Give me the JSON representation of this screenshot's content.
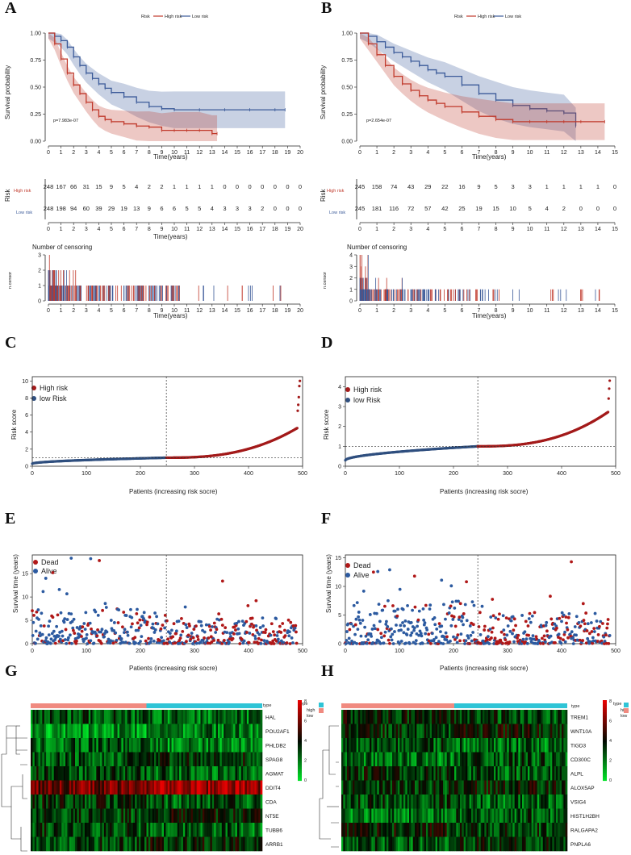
{
  "panels": {
    "A": {
      "label": "A",
      "km": {
        "legend_title": "Risk",
        "legend_high": "High risk",
        "legend_low": "Low risk",
        "ylabel": "Survival probability",
        "xlabel": "Time(years)",
        "pvalue": "p=7.983e-07",
        "yticks": [
          "0.00",
          "0.25",
          "0.50",
          "0.75",
          "1.00"
        ],
        "xmax": 20,
        "high_color": "#c0392b",
        "low_color": "#3b5a99",
        "high_curve": [
          [
            0,
            1.0
          ],
          [
            0.5,
            0.9
          ],
          [
            1,
            0.76
          ],
          [
            1.5,
            0.63
          ],
          [
            2,
            0.52
          ],
          [
            2.5,
            0.44
          ],
          [
            3,
            0.36
          ],
          [
            3.5,
            0.29
          ],
          [
            4,
            0.23
          ],
          [
            4.5,
            0.2
          ],
          [
            5,
            0.18
          ],
          [
            6,
            0.16
          ],
          [
            7,
            0.14
          ],
          [
            8,
            0.13
          ],
          [
            9,
            0.1
          ],
          [
            10,
            0.1
          ],
          [
            11,
            0.1
          ],
          [
            12,
            0.1
          ],
          [
            13,
            0.07
          ],
          [
            13.4,
            0.07
          ]
        ],
        "low_curve": [
          [
            0,
            1.0
          ],
          [
            0.5,
            0.97
          ],
          [
            1,
            0.93
          ],
          [
            1.5,
            0.87
          ],
          [
            2,
            0.78
          ],
          [
            2.5,
            0.7
          ],
          [
            3,
            0.63
          ],
          [
            3.5,
            0.58
          ],
          [
            4,
            0.53
          ],
          [
            4.5,
            0.49
          ],
          [
            5,
            0.45
          ],
          [
            6,
            0.41
          ],
          [
            7,
            0.36
          ],
          [
            8,
            0.32
          ],
          [
            9,
            0.3
          ],
          [
            10,
            0.29
          ],
          [
            12,
            0.29
          ],
          [
            14,
            0.29
          ],
          [
            16,
            0.29
          ],
          [
            18,
            0.29
          ],
          [
            18.8,
            0.29
          ]
        ]
      },
      "risk_table": {
        "ylabel": "Risk",
        "xlabel": "Time(years)",
        "row_high": "High risk",
        "row_low": "Low risk",
        "high": [
          "248",
          "167",
          "66",
          "31",
          "15",
          "9",
          "5",
          "4",
          "2",
          "2",
          "1",
          "1",
          "1",
          "1",
          "0",
          "0",
          "0",
          "0",
          "0",
          "0",
          "0"
        ],
        "low": [
          "248",
          "198",
          "94",
          "60",
          "39",
          "29",
          "19",
          "13",
          "9",
          "6",
          "6",
          "5",
          "5",
          "4",
          "3",
          "3",
          "3",
          "2",
          "0",
          "0",
          "0"
        ]
      },
      "censor": {
        "title": "Number of censoring",
        "ylabel": "n.censor",
        "xlabel": "Time(years)",
        "yticks": [
          "0",
          "1",
          "2",
          "3"
        ]
      }
    },
    "B": {
      "label": "B",
      "km": {
        "legend_title": "Risk",
        "legend_high": "High risk",
        "legend_low": "Low risk",
        "ylabel": "Survival probability",
        "xlabel": "Time(years)",
        "pvalue": "p=2.654e-07",
        "yticks": [
          "0.00",
          "0.25",
          "0.50",
          "0.75",
          "1.00"
        ],
        "xmax": 15,
        "high_color": "#c0392b",
        "low_color": "#3b5a99",
        "high_curve": [
          [
            0,
            1.0
          ],
          [
            0.5,
            0.9
          ],
          [
            1,
            0.8
          ],
          [
            1.5,
            0.7
          ],
          [
            2,
            0.6
          ],
          [
            2.5,
            0.53
          ],
          [
            3,
            0.47
          ],
          [
            3.5,
            0.42
          ],
          [
            4,
            0.38
          ],
          [
            4.5,
            0.35
          ],
          [
            5,
            0.32
          ],
          [
            6,
            0.27
          ],
          [
            7,
            0.23
          ],
          [
            8,
            0.2
          ],
          [
            9,
            0.18
          ],
          [
            10,
            0.18
          ],
          [
            11,
            0.18
          ],
          [
            12,
            0.18
          ],
          [
            13,
            0.18
          ],
          [
            14.4,
            0.18
          ]
        ],
        "low_curve": [
          [
            0,
            1.0
          ],
          [
            0.5,
            0.97
          ],
          [
            1,
            0.92
          ],
          [
            1.5,
            0.87
          ],
          [
            2,
            0.82
          ],
          [
            2.5,
            0.78
          ],
          [
            3,
            0.74
          ],
          [
            3.5,
            0.7
          ],
          [
            4,
            0.66
          ],
          [
            4.5,
            0.63
          ],
          [
            5,
            0.6
          ],
          [
            6,
            0.52
          ],
          [
            7,
            0.44
          ],
          [
            8,
            0.38
          ],
          [
            9,
            0.33
          ],
          [
            10,
            0.3
          ],
          [
            11,
            0.28
          ],
          [
            12,
            0.26
          ],
          [
            12.7,
            0.14
          ]
        ]
      },
      "risk_table": {
        "ylabel": "Risk",
        "xlabel": "Time(years)",
        "row_high": "High risk",
        "row_low": "Low risk",
        "high": [
          "245",
          "158",
          "74",
          "43",
          "29",
          "22",
          "16",
          "9",
          "5",
          "3",
          "3",
          "1",
          "1",
          "1",
          "1",
          "0"
        ],
        "low": [
          "245",
          "181",
          "116",
          "72",
          "57",
          "42",
          "25",
          "19",
          "15",
          "10",
          "5",
          "4",
          "2",
          "0",
          "0",
          "0"
        ]
      },
      "censor": {
        "title": "Number of censoring",
        "ylabel": "n.censor",
        "xlabel": "Time(years)",
        "yticks": [
          "0",
          "1",
          "2",
          "3",
          "4"
        ]
      }
    },
    "C": {
      "label": "C",
      "ylabel": "Risk score",
      "xlabel": "Patients (increasing risk socre)",
      "legend_high": "High risk",
      "legend_low": "low Risk",
      "yticks": [
        "0",
        "2",
        "4",
        "6",
        "8",
        "10"
      ],
      "xticks": [
        "0",
        "100",
        "200",
        "300",
        "400",
        "500"
      ],
      "ymax": 10.5
    },
    "D": {
      "label": "D",
      "ylabel": "Risk score",
      "xlabel": "Patients (increasing risk socre)",
      "legend_high": "High risk",
      "legend_low": "low Risk",
      "yticks": [
        "0",
        "1",
        "2",
        "3",
        "4"
      ],
      "xticks": [
        "0",
        "100",
        "200",
        "300",
        "400",
        "500"
      ],
      "ymax": 4.5
    },
    "E": {
      "label": "E",
      "ylabel": "Survival time (years)",
      "xlabel": "Patients (increasing risk socre)",
      "legend_dead": "Dead",
      "legend_alive": "Alive",
      "yticks": [
        "0",
        "5",
        "10",
        "15"
      ],
      "xticks": [
        "0",
        "100",
        "200",
        "300",
        "400",
        "500"
      ]
    },
    "F": {
      "label": "F",
      "ylabel": "Survival time (years)",
      "xlabel": "Patients (increasing risk socre)",
      "legend_dead": "Dead",
      "legend_alive": "Alive",
      "yticks": [
        "0",
        "5",
        "10",
        "15"
      ],
      "xticks": [
        "0",
        "100",
        "200",
        "300",
        "400",
        "500"
      ]
    },
    "G": {
      "label": "G",
      "genes": [
        "HAL",
        "POU2AF1",
        "PHLDB2",
        "SPAG8",
        "AGMAT",
        "DDIT4",
        "CDA",
        "NT5E",
        "TUBB6",
        "ARRB1"
      ],
      "type_label": "type",
      "legend_type": "type",
      "legend_high": "high",
      "legend_low": "low",
      "scale": [
        "8",
        "6",
        "4",
        "2",
        "0"
      ]
    },
    "H": {
      "label": "H",
      "genes": [
        "TREM1",
        "WNT10A",
        "TIGD3",
        "CD300C",
        "ALPL",
        "ALOX5AP",
        "VSIG4",
        "HIST1H2BH",
        "RALGAPA2",
        "PNPLA6"
      ],
      "type_label": "type",
      "legend_type": "type",
      "legend_high": "high",
      "legend_low": "low",
      "scale": [
        "8",
        "6",
        "4",
        "2",
        "0"
      ]
    }
  },
  "colors": {
    "high": "#a31a1a",
    "low": "#2f4f7f",
    "dead": "#b01818",
    "alive": "#2c5aa0",
    "type_high": "#f08a80",
    "type_low": "#2ec4d6"
  },
  "chart_data": [
    {
      "type": "line",
      "title": "A",
      "xlabel": "Time(years)",
      "ylabel": "Survival probability",
      "series": [
        {
          "name": "High risk",
          "x": [
            0,
            1,
            2,
            3,
            4,
            5,
            7,
            9,
            13,
            13.4
          ],
          "values": [
            1.0,
            0.76,
            0.52,
            0.36,
            0.23,
            0.18,
            0.14,
            0.1,
            0.07,
            0.07
          ]
        },
        {
          "name": "Low risk",
          "x": [
            0,
            1,
            2,
            3,
            4,
            5,
            7,
            9,
            12,
            18.8
          ],
          "values": [
            1.0,
            0.93,
            0.78,
            0.63,
            0.53,
            0.45,
            0.36,
            0.3,
            0.29,
            0.29
          ]
        }
      ],
      "ylim": [
        0,
        1
      ],
      "annotation": "p=7.983e-07"
    },
    {
      "type": "line",
      "title": "B",
      "xlabel": "Time(years)",
      "ylabel": "Survival probability",
      "series": [
        {
          "name": "High risk",
          "x": [
            0,
            1,
            2,
            3,
            4,
            5,
            7,
            9,
            12,
            14.4
          ],
          "values": [
            1.0,
            0.8,
            0.6,
            0.47,
            0.38,
            0.32,
            0.23,
            0.18,
            0.18,
            0.18
          ]
        },
        {
          "name": "Low risk",
          "x": [
            0,
            1,
            2,
            3,
            4,
            5,
            7,
            9,
            12,
            12.7
          ],
          "values": [
            1.0,
            0.92,
            0.82,
            0.74,
            0.66,
            0.6,
            0.44,
            0.33,
            0.26,
            0.14
          ]
        }
      ],
      "ylim": [
        0,
        1
      ],
      "annotation": "p=2.654e-07"
    },
    {
      "type": "scatter",
      "title": "C",
      "xlabel": "Patients (increasing risk socre)",
      "ylabel": "Risk score",
      "x_range": [
        0,
        496
      ],
      "cutoff_index": 248,
      "cutoff_score": 1.0,
      "ylim": [
        0,
        10.5
      ]
    },
    {
      "type": "scatter",
      "title": "D",
      "xlabel": "Patients (increasing risk socre)",
      "ylabel": "Risk score",
      "x_range": [
        0,
        490
      ],
      "cutoff_index": 245,
      "cutoff_score": 1.0,
      "ylim": [
        0,
        4.5
      ]
    },
    {
      "type": "scatter",
      "title": "E",
      "xlabel": "Patients (increasing risk socre)",
      "ylabel": "Survival time (years)",
      "ylim": [
        0,
        19
      ]
    },
    {
      "type": "scatter",
      "title": "F",
      "xlabel": "Patients (increasing risk socre)",
      "ylabel": "Survival time (years)",
      "ylim": [
        0,
        15
      ]
    },
    {
      "type": "heatmap",
      "title": "G",
      "rows": [
        "HAL",
        "POU2AF1",
        "PHLDB2",
        "SPAG8",
        "AGMAT",
        "DDIT4",
        "CDA",
        "NT5E",
        "TUBB6",
        "ARRB1"
      ],
      "scale": [
        0,
        8
      ]
    },
    {
      "type": "heatmap",
      "title": "H",
      "rows": [
        "TREM1",
        "WNT10A",
        "TIGD3",
        "CD300C",
        "ALPL",
        "ALOX5AP",
        "VSIG4",
        "HIST1H2BH",
        "RALGAPA2",
        "PNPLA6"
      ],
      "scale": [
        0,
        8
      ]
    }
  ]
}
